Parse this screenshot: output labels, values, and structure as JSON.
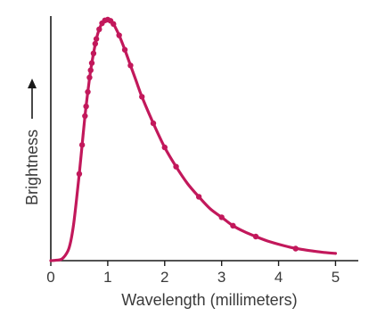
{
  "chart_data": {
    "type": "line",
    "title": "",
    "xlabel": "Wavelength (millimeters)",
    "ylabel": "Brightness",
    "ylabel_arrow": "up-arrow",
    "xlim": [
      0,
      5.4
    ],
    "ylim": [
      0,
      1
    ],
    "x_ticks": [
      0,
      1,
      2,
      3,
      4,
      5
    ],
    "x_tick_labels": [
      "0",
      "1",
      "2",
      "3",
      "4",
      "5"
    ],
    "y_tick_labels": [],
    "grid": false,
    "color": "#c2185b",
    "series": [
      {
        "curve": {
          "x": [
            0.0,
            0.1,
            0.2,
            0.3,
            0.35,
            0.4,
            0.45,
            0.5,
            0.55,
            0.6,
            0.65,
            0.7,
            0.75,
            0.8,
            0.85,
            0.9,
            0.95,
            1.0,
            1.05,
            1.1,
            1.15,
            1.2,
            1.3,
            1.4,
            1.5,
            1.6,
            1.8,
            2.0,
            2.2,
            2.4,
            2.6,
            2.8,
            3.0,
            3.2,
            3.4,
            3.6,
            3.8,
            4.0,
            4.2,
            4.4,
            4.6,
            4.8,
            5.0
          ],
          "y": [
            0.0,
            0.002,
            0.008,
            0.04,
            0.08,
            0.15,
            0.25,
            0.36,
            0.48,
            0.6,
            0.7,
            0.79,
            0.86,
            0.92,
            0.96,
            0.985,
            0.997,
            1.0,
            0.995,
            0.982,
            0.96,
            0.935,
            0.875,
            0.81,
            0.745,
            0.68,
            0.57,
            0.47,
            0.39,
            0.32,
            0.265,
            0.215,
            0.18,
            0.145,
            0.12,
            0.1,
            0.082,
            0.068,
            0.056,
            0.047,
            0.04,
            0.034,
            0.03
          ]
        },
        "points": {
          "x": [
            0.5,
            0.55,
            0.6,
            0.62,
            0.65,
            0.68,
            0.7,
            0.72,
            0.75,
            0.78,
            0.8,
            0.85,
            0.9,
            0.95,
            1.0,
            1.05,
            1.1,
            1.2,
            1.3,
            1.4,
            1.6,
            1.8,
            2.0,
            2.2,
            2.6,
            3.0,
            3.2,
            3.6,
            4.3
          ],
          "y": [
            0.36,
            0.48,
            0.6,
            0.64,
            0.7,
            0.76,
            0.79,
            0.82,
            0.86,
            0.9,
            0.92,
            0.96,
            0.985,
            0.997,
            1.0,
            0.995,
            0.982,
            0.935,
            0.875,
            0.81,
            0.68,
            0.57,
            0.47,
            0.39,
            0.265,
            0.18,
            0.145,
            0.1,
            0.05
          ]
        }
      }
    ]
  }
}
